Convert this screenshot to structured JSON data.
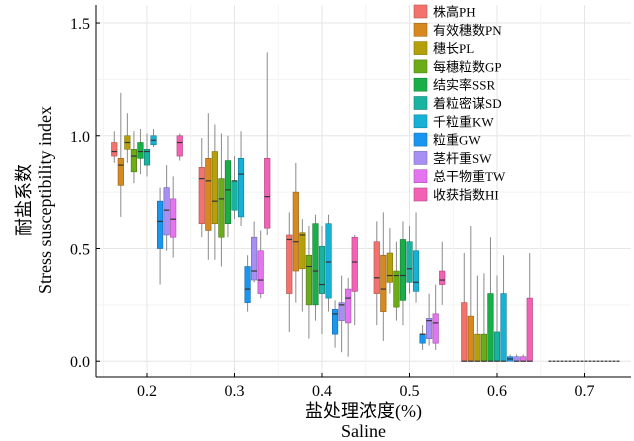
{
  "chart_data": {
    "type": "boxplot",
    "xlabel_lines": [
      "盐处理浓度(%)",
      "Saline"
    ],
    "ylabel_lines": [
      "耐盐系数",
      "Stress susceptibility index"
    ],
    "categories": [
      "0.2",
      "0.3",
      "0.4",
      "0.5",
      "0.6",
      "0.7"
    ],
    "y_ticks": [
      "0.0",
      "0.5",
      "1.0",
      "1.5"
    ],
    "ylim": [
      -0.07,
      1.58
    ],
    "grid": true,
    "legend_position": "top-right",
    "series": [
      {
        "name": "株高PH",
        "color": "#f4726d",
        "boxes": [
          [
            0.88,
            0.91,
            0.93,
            0.97,
            1.02
          ],
          [
            0.55,
            0.61,
            0.81,
            0.86,
            0.99
          ],
          [
            0.13,
            0.3,
            0.54,
            0.56,
            0.66
          ],
          [
            0.16,
            0.3,
            0.37,
            0.53,
            0.62
          ],
          [
            0.0,
            0.0,
            0.0,
            0.26,
            0.48
          ],
          null
        ]
      },
      {
        "name": "有效穗数PN",
        "color": "#d6891f",
        "boxes": [
          [
            0.64,
            0.78,
            0.87,
            0.9,
            1.19
          ],
          [
            0.45,
            0.58,
            0.8,
            0.9,
            1.1
          ],
          [
            0.26,
            0.4,
            0.53,
            0.75,
            0.88
          ],
          [
            0.09,
            0.22,
            0.32,
            0.47,
            0.66
          ],
          [
            0.0,
            0.0,
            0.0,
            0.2,
            0.6
          ],
          null
        ]
      },
      {
        "name": "穗长PL",
        "color": "#b4a00b",
        "boxes": [
          [
            0.88,
            0.94,
            0.97,
            1.0,
            1.1
          ],
          [
            0.45,
            0.61,
            0.71,
            0.93,
            1.05
          ],
          [
            0.22,
            0.41,
            0.56,
            0.57,
            0.63
          ],
          [
            0.3,
            0.35,
            0.38,
            0.48,
            0.59
          ],
          [
            0.0,
            0.0,
            0.0,
            0.12,
            0.38
          ],
          null
        ]
      },
      {
        "name": "每穗粒数GP",
        "color": "#6cac19",
        "boxes": [
          [
            0.79,
            0.84,
            0.91,
            0.94,
            1.02
          ],
          [
            0.42,
            0.55,
            0.72,
            0.81,
            1.01
          ],
          [
            0.1,
            0.25,
            0.42,
            0.47,
            0.6
          ],
          [
            0.18,
            0.24,
            0.38,
            0.4,
            0.53
          ],
          [
            0.0,
            0.0,
            0.0,
            0.12,
            0.39
          ],
          null
        ]
      },
      {
        "name": "结实率SSR",
        "color": "#1aae49",
        "boxes": [
          [
            0.83,
            0.9,
            0.93,
            0.97,
            1.03
          ],
          [
            0.55,
            0.61,
            0.76,
            0.89,
            1.0
          ],
          [
            0.18,
            0.25,
            0.4,
            0.61,
            0.65
          ],
          [
            0.16,
            0.27,
            0.38,
            0.54,
            0.62
          ],
          [
            0.0,
            0.0,
            0.0,
            0.3,
            0.55
          ],
          null
        ]
      },
      {
        "name": "着粒密谋SD",
        "color": "#1ab3a1",
        "boxes": [
          [
            0.82,
            0.87,
            0.93,
            0.94,
            1.01
          ],
          [
            0.63,
            0.67,
            0.8,
            0.8,
            0.91
          ],
          [
            0.12,
            0.3,
            0.34,
            0.51,
            0.6
          ],
          [
            0.3,
            0.35,
            0.41,
            0.53,
            0.6
          ],
          [
            0.0,
            0.0,
            0.0,
            0.13,
            0.38
          ],
          null
        ]
      },
      {
        "name": "千粒重KW",
        "color": "#17b1d6",
        "boxes": [
          [
            0.95,
            0.96,
            0.98,
            1.0,
            1.03
          ],
          [
            0.6,
            0.64,
            0.83,
            0.9,
            1.02
          ],
          [
            0.22,
            0.28,
            0.44,
            0.61,
            0.65
          ],
          [
            0.26,
            0.31,
            0.35,
            0.49,
            0.66
          ],
          [
            0.0,
            0.0,
            0.0,
            0.3,
            0.47
          ],
          null
        ]
      },
      {
        "name": "粒重GW",
        "color": "#1a95f0",
        "boxes": [
          [
            0.34,
            0.5,
            0.62,
            0.71,
            0.77
          ],
          [
            0.22,
            0.26,
            0.32,
            0.42,
            0.47
          ],
          [
            0.06,
            0.12,
            0.21,
            0.23,
            0.27
          ],
          [
            0.05,
            0.08,
            0.12,
            0.12,
            0.16
          ],
          [
            0.0,
            0.0,
            0.01,
            0.02,
            0.03
          ],
          null
        ]
      },
      {
        "name": "茎杆重SW",
        "color": "#a88ff4",
        "boxes": [
          [
            0.49,
            0.56,
            0.67,
            0.77,
            0.87
          ],
          [
            0.35,
            0.36,
            0.4,
            0.55,
            0.62
          ],
          [
            0.04,
            0.18,
            0.25,
            0.26,
            0.38
          ],
          [
            0.07,
            0.1,
            0.18,
            0.19,
            0.3
          ],
          [
            0.0,
            0.0,
            0.0,
            0.02,
            0.03
          ],
          null
        ]
      },
      {
        "name": "总干物重TW",
        "color": "#e574ef",
        "boxes": [
          [
            0.46,
            0.55,
            0.63,
            0.72,
            0.82
          ],
          [
            0.28,
            0.3,
            0.36,
            0.49,
            0.58
          ],
          [
            0.02,
            0.17,
            0.28,
            0.32,
            0.37
          ],
          [
            0.05,
            0.08,
            0.17,
            0.21,
            0.34
          ],
          [
            0.0,
            0.0,
            0.0,
            0.02,
            0.03
          ],
          null
        ]
      },
      {
        "name": "收获指数HI",
        "color": "#f261b3",
        "boxes": [
          [
            0.89,
            0.91,
            0.97,
            1.0,
            1.01
          ],
          [
            0.56,
            0.59,
            0.73,
            0.9,
            1.37
          ],
          [
            0.16,
            0.31,
            0.44,
            0.55,
            0.56
          ],
          [
            0.25,
            0.34,
            0.36,
            0.4,
            0.53
          ],
          [
            0.0,
            0.0,
            0.0,
            0.28,
            0.48
          ],
          null
        ]
      }
    ],
    "flat_at_zero": {
      "category": "0.7",
      "value": 0.0
    }
  }
}
